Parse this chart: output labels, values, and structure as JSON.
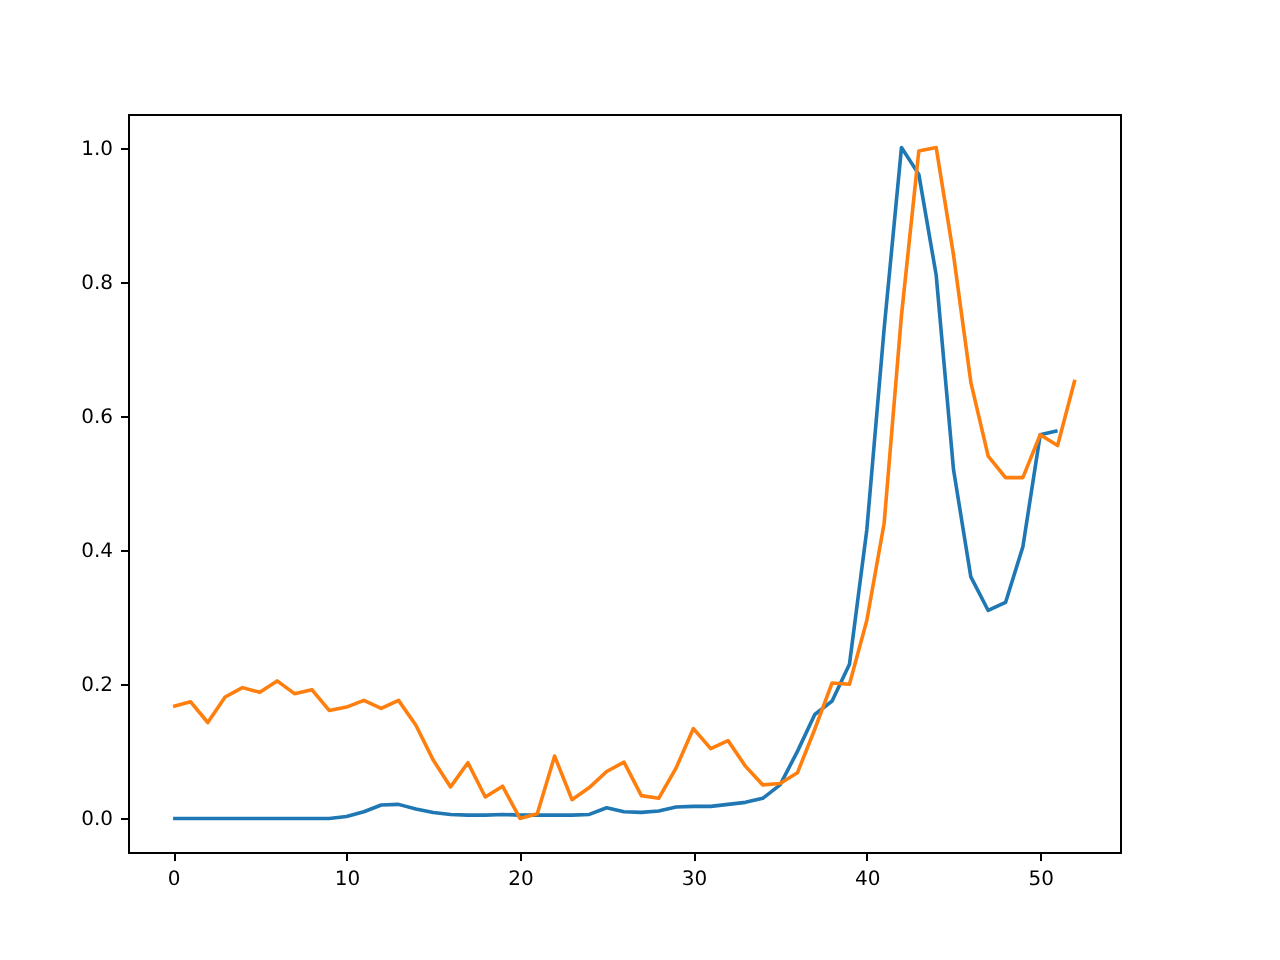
{
  "chart_data": {
    "type": "line",
    "xlim": [
      -2.6,
      54.6
    ],
    "ylim": [
      -0.05,
      1.05
    ],
    "xticks": [
      0,
      10,
      20,
      30,
      40,
      50
    ],
    "yticks": [
      {
        "value": 0,
        "label": "0.0"
      },
      {
        "value": 0.2,
        "label": "0.2"
      },
      {
        "value": 0.4,
        "label": "0.4"
      },
      {
        "value": 0.6,
        "label": "0.6"
      },
      {
        "value": 0.8,
        "label": "0.8"
      },
      {
        "value": 1,
        "label": "1.0"
      }
    ],
    "grid": false,
    "series": [
      {
        "color": "#1f77b4",
        "x": [
          0,
          1,
          2,
          3,
          4,
          5,
          6,
          7,
          8,
          9,
          10,
          11,
          12,
          13,
          14,
          15,
          16,
          17,
          18,
          19,
          20,
          21,
          22,
          23,
          24,
          25,
          26,
          27,
          28,
          29,
          30,
          31,
          32,
          33,
          34,
          35,
          36,
          37,
          38,
          39,
          40,
          41,
          42,
          43,
          44,
          45,
          46,
          47,
          48,
          49,
          50,
          51
        ],
        "values": [
          0,
          0,
          0,
          0,
          0,
          0,
          0,
          0,
          0,
          0,
          0.003,
          0.01,
          0.02,
          0.021,
          0.014,
          0.009,
          0.006,
          0.005,
          0.005,
          0.006,
          0.005,
          0.005,
          0.005,
          0.005,
          0.006,
          0.016,
          0.01,
          0.009,
          0.011,
          0.017,
          0.018,
          0.018,
          0.021,
          0.024,
          0.03,
          0.05,
          0.1,
          0.155,
          0.175,
          0.23,
          0.43,
          0.73,
          1.0,
          0.96,
          0.81,
          0.52,
          0.36,
          0.31,
          0.322,
          0.405,
          0.572,
          0.578
        ]
      },
      {
        "color": "#ff7f0e",
        "x": [
          0,
          1,
          2,
          3,
          4,
          5,
          6,
          7,
          8,
          9,
          10,
          11,
          12,
          13,
          14,
          15,
          16,
          17,
          18,
          19,
          20,
          21,
          22,
          23,
          24,
          25,
          26,
          27,
          28,
          29,
          30,
          31,
          32,
          33,
          34,
          35,
          36,
          37,
          38,
          39,
          40,
          41,
          42,
          43,
          44,
          45,
          46,
          47,
          48,
          49,
          50,
          51,
          52
        ],
        "values": [
          0.167,
          0.174,
          0.143,
          0.181,
          0.195,
          0.188,
          0.205,
          0.186,
          0.192,
          0.161,
          0.166,
          0.176,
          0.164,
          0.176,
          0.139,
          0.087,
          0.047,
          0.083,
          0.032,
          0.048,
          0.0,
          0.007,
          0.093,
          0.028,
          0.046,
          0.07,
          0.084,
          0.034,
          0.03,
          0.075,
          0.134,
          0.104,
          0.116,
          0.078,
          0.05,
          0.052,
          0.068,
          0.133,
          0.202,
          0.2,
          0.295,
          0.44,
          0.75,
          0.995,
          1.0,
          0.84,
          0.65,
          0.54,
          0.508,
          0.508,
          0.572,
          0.556,
          0.654
        ]
      }
    ]
  }
}
